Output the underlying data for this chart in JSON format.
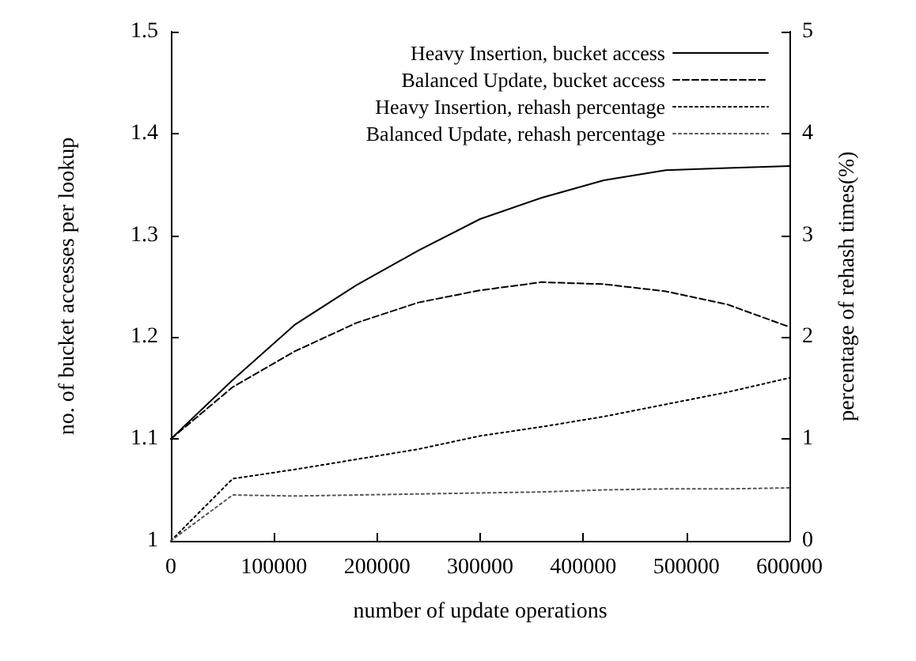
{
  "chart_data": {
    "type": "line",
    "xlabel": "number of update operations",
    "ylabel": "no. of bucket accesses per lookup",
    "y2label": "percentage of rehash times(%)",
    "x": [
      0,
      60000,
      120000,
      180000,
      240000,
      300000,
      360000,
      420000,
      480000,
      540000,
      600000
    ],
    "xlim": [
      0,
      600000
    ],
    "xticks": [
      0,
      100000,
      200000,
      300000,
      400000,
      500000,
      600000
    ],
    "ylim": [
      1,
      1.5
    ],
    "yticks": [
      1,
      1.1,
      1.2,
      1.3,
      1.4,
      1.5
    ],
    "y2lim": [
      0,
      5
    ],
    "y2ticks": [
      0,
      1,
      2,
      3,
      4,
      5
    ],
    "grid": false,
    "legend": "top right",
    "marker": "none",
    "series": [
      {
        "name": "Heavy Insertion, bucket access",
        "color": "#000000",
        "line_style": "solid",
        "values": [
          1.1,
          1.158,
          1.212,
          1.251,
          1.285,
          1.316,
          1.337,
          1.354,
          1.364,
          1.366,
          1.368
        ]
      },
      {
        "name": "Balanced Update, bucket access",
        "color": "#000000",
        "line_style": "dashed",
        "values": [
          1.1,
          1.151,
          1.186,
          1.214,
          1.234,
          1.246,
          1.254,
          1.252,
          1.245,
          1.232,
          1.21
        ]
      },
      {
        "name": "Heavy Insertion, rehash percentage",
        "color": "#000000",
        "line_style": "dotted",
        "axis": "y2",
        "values": [
          0,
          0.61,
          0.7,
          0.8,
          0.9,
          1.03,
          1.12,
          1.22,
          1.34,
          1.46,
          1.6
        ]
      },
      {
        "name": "Balanced Update, rehash percentage",
        "color": "#555555",
        "line_style": "dotted",
        "axis": "y2",
        "values": [
          0,
          0.45,
          0.44,
          0.45,
          0.46,
          0.47,
          0.48,
          0.5,
          0.51,
          0.51,
          0.52
        ]
      }
    ]
  }
}
